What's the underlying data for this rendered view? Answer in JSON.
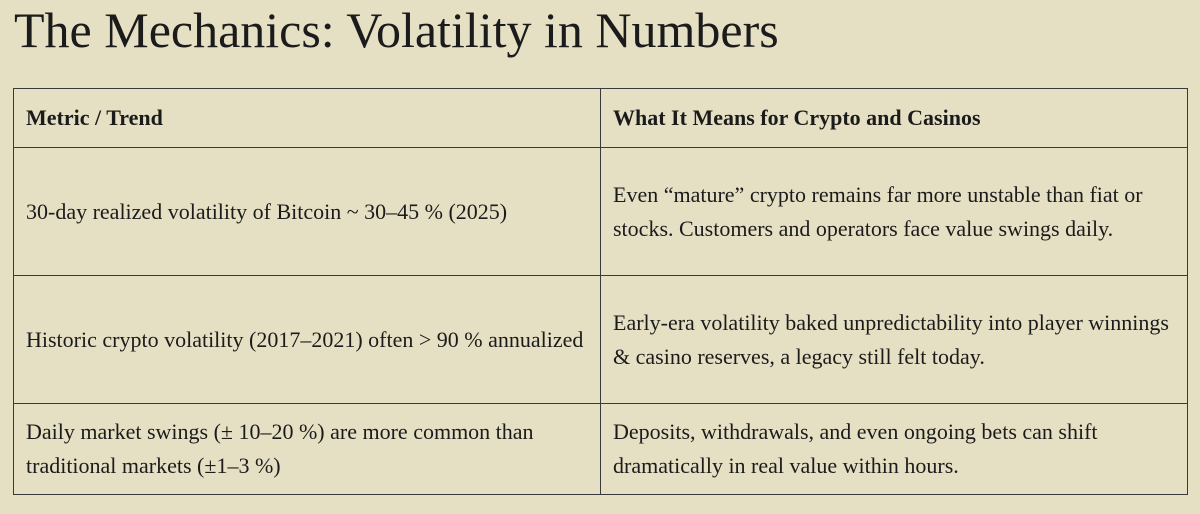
{
  "header": {
    "title": "The Mechanics: Volatility in Numbers"
  },
  "table": {
    "columns": [
      "Metric / Trend",
      "What It Means for Crypto and Casinos"
    ],
    "rows": [
      [
        "30-day realized volatility of Bitcoin ~ 30–45 % (2025)",
        "Even “mature” crypto remains far more unstable than fiat or stocks. Customers and operators face value swings daily."
      ],
      [
        "Historic crypto volatility (2017–2021) often > 90 % annualized",
        "Early-era volatility baked unpredictability into player winnings & casino reserves, a legacy still felt today."
      ],
      [
        "Daily market swings (± 10–20 %) are more common than traditional markets (±1–3 %)",
        "Deposits, withdrawals, and even ongoing bets can shift dramatically in real value within hours."
      ]
    ]
  }
}
